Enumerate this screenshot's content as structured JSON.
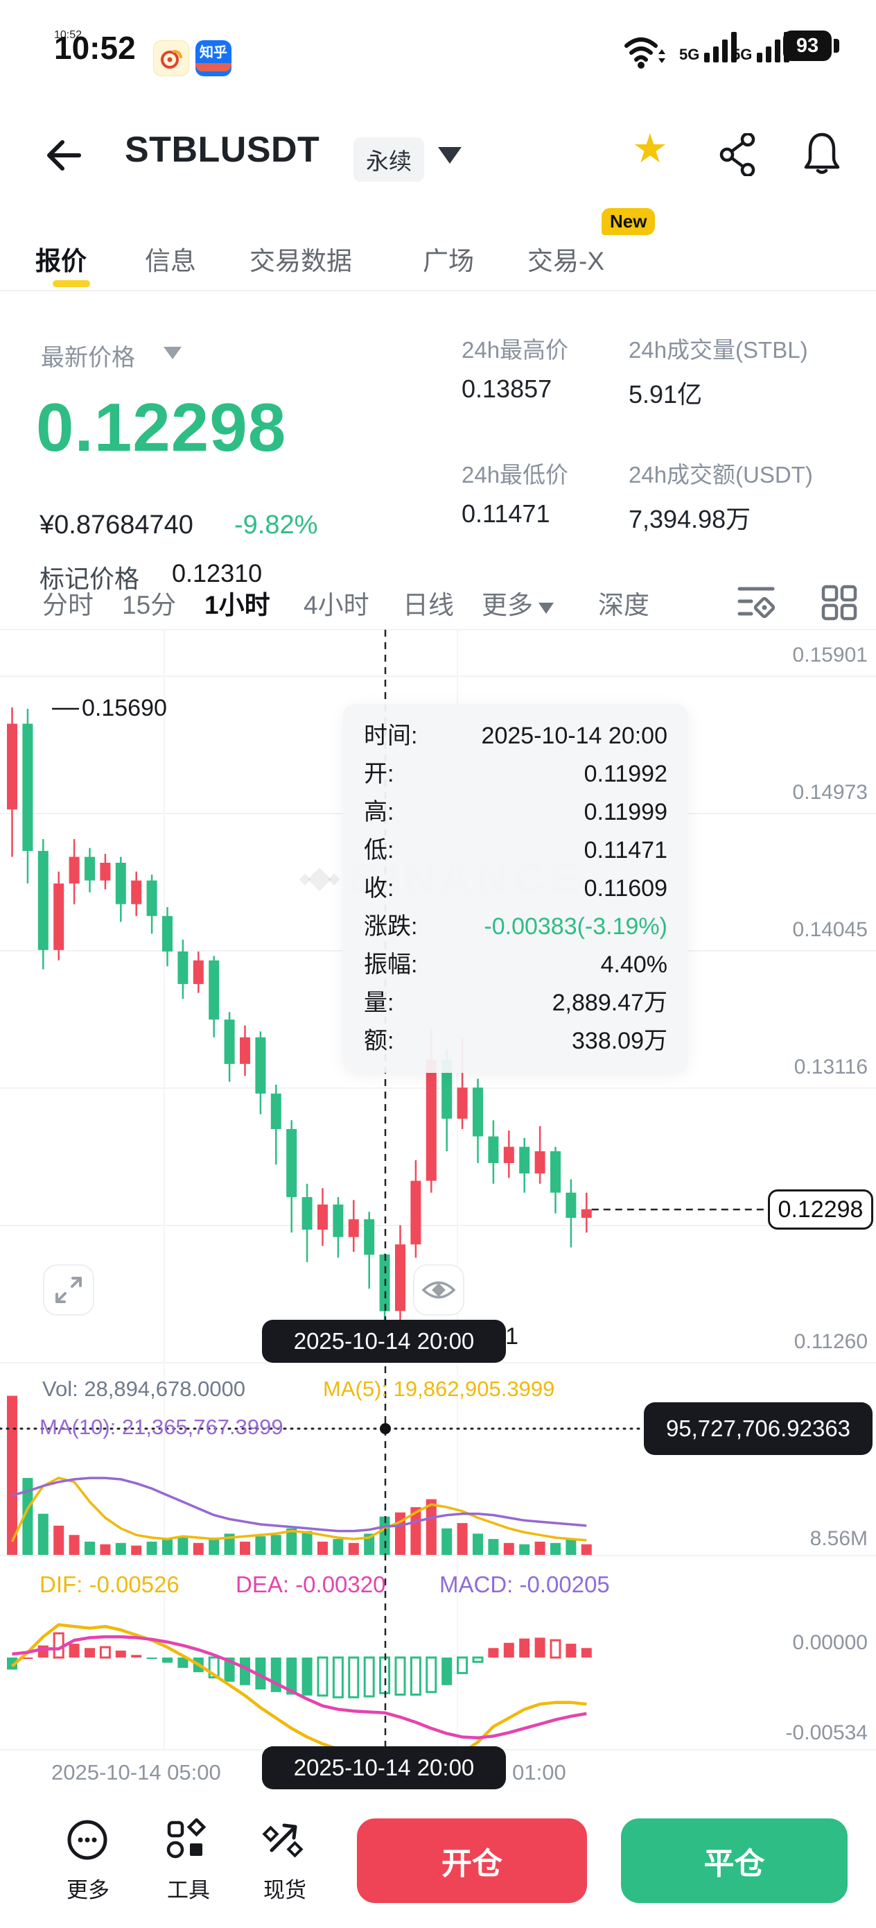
{
  "status_bar": {
    "time": "10:52",
    "battery": "93",
    "network_left": "5G",
    "network_right": "5G"
  },
  "header": {
    "symbol": "STBLUSDT",
    "contract_type": "永续"
  },
  "tabs": {
    "items": [
      "报价",
      "信息",
      "交易数据",
      "广场",
      "交易-X"
    ],
    "active": "报价",
    "new_badge": "New"
  },
  "ticker": {
    "last_price_label": "最新价格",
    "last_price": "0.12298",
    "cny_price": "¥0.87684740",
    "change_pct": "-9.82%",
    "mark_price_label": "标记价格",
    "mark_price": "0.12310",
    "high_label": "24h最高价",
    "high": "0.13857",
    "low_label": "24h最低价",
    "low": "0.11471",
    "volume_label": "24h成交量(STBL)",
    "volume": "5.91亿",
    "turnover_label": "24h成交额(USDT)",
    "turnover": "7,394.98万"
  },
  "timeframes": {
    "items": [
      "分时",
      "15分",
      "1小时",
      "4小时",
      "日线",
      "更多",
      "深度"
    ],
    "active": "1小时"
  },
  "tooltip": {
    "rows": [
      {
        "label": "时间:",
        "value": "2025-10-14 20:00"
      },
      {
        "label": "开:",
        "value": "0.11992"
      },
      {
        "label": "高:",
        "value": "0.11999"
      },
      {
        "label": "低:",
        "value": "0.11471"
      },
      {
        "label": "收:",
        "value": "0.11609"
      },
      {
        "label": "涨跌:",
        "value": "-0.00383(-3.19%)"
      },
      {
        "label": "振幅:",
        "value": "4.40%"
      },
      {
        "label": "量:",
        "value": "2,889.47万"
      },
      {
        "label": "额:",
        "value": "338.09万"
      }
    ]
  },
  "vol_header": {
    "vol": "Vol: 28,894,678.0000",
    "ma5": "MA(5): 19,862,905.3999",
    "ma10": "MA(10): 21,365,767.3999"
  },
  "macd_header": {
    "dif": "DIF: -0.00526",
    "dea": "DEA: -0.00320",
    "macd": "MACD: -0.00205"
  },
  "crosshair": {
    "volume_tag": "95,727,706.92363",
    "date_tag": "2025-10-14 20:00"
  },
  "axis": {
    "price_labels": [
      "0.15901",
      "0.14973",
      "0.14045",
      "0.13116",
      "0.11260"
    ],
    "vol_label": "8.56M",
    "macd_zero": "0.00000",
    "macd_min": "-0.00534",
    "x_left": "2025-10-14 05:00",
    "x_right": "2025-10-15 01:00",
    "price_tag": "0.12298",
    "high_annotation": "0.15690",
    "low_annotation": "0.11471"
  },
  "watermark": "BINANCE",
  "footer": {
    "more": "更多",
    "tools": "工具",
    "spot": "现货",
    "open_btn": "开仓",
    "close_btn": "平仓"
  },
  "chart_data": {
    "type": "candlestick",
    "symbol": "STBLUSDT",
    "interval": "1小时",
    "up_color": "#f04a5a",
    "down_color": "#2ebd85",
    "ma5_color": "#f0b90b",
    "ma10_color": "#9668d2",
    "dif_color": "#f0b90b",
    "dea_color": "#e444ae",
    "price_gridlines": [
      0.15901,
      0.14973,
      0.14045,
      0.13116,
      0.12188,
      0.1126
    ],
    "vol_axis_label_millions": 8.56,
    "macd_gridlines": [
      0.0,
      -0.00534
    ],
    "x_axis_labels": [
      "2025-10-14 05:00",
      "2025-10-14 20:00",
      "2025-10-15 01:00"
    ],
    "annotations": {
      "chart_high": 0.1569,
      "chart_low": 0.11471,
      "last_price": 0.12298,
      "crosshair_volume": "95,727,706.92363",
      "crosshair_time": "2025-10-14 20:00"
    },
    "selected_candle": {
      "time": "2025-10-14 20:00",
      "open": 0.11992,
      "high": 0.11999,
      "low": 0.11471,
      "close": 0.11609,
      "change": "-0.00383",
      "change_pct": "-3.19%",
      "amplitude": "4.40%",
      "volume": "2,889.47万",
      "turnover": "338.09万"
    },
    "columns": [
      "open",
      "high",
      "low",
      "close",
      "volume_millions",
      "vol_ma5_millions",
      "vol_ma10_millions",
      "dif",
      "dea",
      "macd_bar_hollow"
    ],
    "start_time": "2025-10-13 20:00",
    "candles": [
      [
        0.15,
        0.1569,
        0.1468,
        0.1558,
        120,
        10,
        45,
        -0.0005,
        0.0002,
        0
      ],
      [
        0.1558,
        0.1568,
        0.145,
        0.1472,
        58,
        35,
        48,
        0.0003,
        0.0003,
        0
      ],
      [
        0.1472,
        0.148,
        0.1392,
        0.1405,
        31,
        52,
        52,
        0.0012,
        0.0005,
        0
      ],
      [
        0.1405,
        0.1458,
        0.1398,
        0.145,
        22,
        58,
        55,
        0.0019,
        0.0005,
        1
      ],
      [
        0.145,
        0.148,
        0.1436,
        0.1468,
        15,
        55,
        57,
        0.0018,
        0.001,
        0
      ],
      [
        0.1468,
        0.1474,
        0.1444,
        0.1452,
        10,
        40,
        58,
        0.0017,
        0.00115,
        0
      ],
      [
        0.1452,
        0.147,
        0.1446,
        0.1464,
        8,
        28,
        58,
        0.0018,
        0.0012,
        1
      ],
      [
        0.1464,
        0.1468,
        0.1424,
        0.1436,
        9,
        20,
        57,
        0.0016,
        0.0012,
        0
      ],
      [
        0.1436,
        0.1458,
        0.1428,
        0.1452,
        7,
        15,
        54,
        0.0013,
        0.00115,
        0
      ],
      [
        0.1452,
        0.1456,
        0.1416,
        0.1428,
        10,
        13,
        50,
        0.001,
        0.00105,
        0
      ],
      [
        0.1428,
        0.1434,
        0.1394,
        0.1404,
        12,
        12,
        45,
        0.0006,
        0.0009,
        0
      ],
      [
        0.1404,
        0.1412,
        0.1372,
        0.1382,
        14,
        14,
        40,
        0.0001,
        0.0007,
        0
      ],
      [
        0.1382,
        0.1404,
        0.1376,
        0.1398,
        9,
        13,
        35,
        -0.0004,
        0.00045,
        0
      ],
      [
        0.1398,
        0.1401,
        0.1346,
        0.1358,
        13,
        12,
        30,
        -0.001,
        0.00015,
        1
      ],
      [
        0.1358,
        0.1363,
        0.1316,
        0.1328,
        16,
        13,
        27,
        -0.0016,
        -0.0002,
        0
      ],
      [
        0.1328,
        0.1354,
        0.132,
        0.1346,
        10,
        14,
        25,
        -0.0022,
        -0.0006,
        0
      ],
      [
        0.1346,
        0.135,
        0.1294,
        0.1308,
        14,
        15,
        23,
        -0.0029,
        -0.00105,
        0
      ],
      [
        0.1308,
        0.1314,
        0.126,
        0.1284,
        15,
        16,
        22,
        -0.0035,
        -0.0015,
        0
      ],
      [
        0.1284,
        0.129,
        0.1214,
        0.1238,
        20,
        18,
        21,
        -0.0041,
        -0.00195,
        0
      ],
      [
        0.1238,
        0.1247,
        0.1194,
        0.1216,
        18,
        17,
        20,
        -0.0046,
        -0.0024,
        0
      ],
      [
        0.1216,
        0.1244,
        0.1205,
        0.1233,
        10,
        15,
        19,
        -0.005,
        -0.0028,
        1
      ],
      [
        0.1233,
        0.1238,
        0.1197,
        0.1211,
        12,
        13,
        18,
        -0.0053,
        -0.003,
        1
      ],
      [
        0.1211,
        0.1236,
        0.1201,
        0.1223,
        9,
        12,
        18,
        -0.0054,
        -0.0031,
        1
      ],
      [
        0.1223,
        0.1228,
        0.1176,
        0.1199,
        16,
        13,
        19,
        -0.0054,
        -0.00315,
        1
      ],
      [
        0.11992,
        0.11999,
        0.11471,
        0.11609,
        28.89,
        19.86,
        21.37,
        -0.00526,
        -0.0032,
        1
      ],
      [
        0.1161,
        0.1219,
        0.1151,
        0.1206,
        32,
        25,
        22,
        -0.0056,
        -0.00345,
        1
      ],
      [
        0.1206,
        0.1263,
        0.1197,
        0.1249,
        36,
        32,
        25,
        -0.0059,
        -0.00375,
        1
      ],
      [
        0.1249,
        0.1352,
        0.1241,
        0.1331,
        42,
        38,
        28,
        -0.0061,
        -0.0041,
        1
      ],
      [
        0.1331,
        0.1338,
        0.1269,
        0.1291,
        20,
        36,
        30,
        -0.006,
        -0.0044,
        0
      ],
      [
        0.1291,
        0.1346,
        0.1284,
        0.1312,
        24,
        33,
        31,
        -0.0055,
        -0.0046,
        1
      ],
      [
        0.1312,
        0.1318,
        0.1261,
        0.1279,
        16,
        28,
        31,
        -0.0049,
        -0.00465,
        1
      ],
      [
        0.1279,
        0.129,
        0.1247,
        0.1261,
        12,
        24,
        30,
        -0.004,
        -0.00455,
        0
      ],
      [
        0.1261,
        0.1283,
        0.1251,
        0.1272,
        9,
        20,
        28,
        -0.0035,
        -0.00435,
        0
      ],
      [
        0.1272,
        0.1278,
        0.1241,
        0.1254,
        8,
        17,
        26,
        -0.003,
        -0.0041,
        0
      ],
      [
        0.1254,
        0.1286,
        0.1247,
        0.1269,
        10,
        15,
        25,
        -0.0027,
        -0.00385,
        0
      ],
      [
        0.1269,
        0.1272,
        0.1227,
        0.1241,
        9,
        13,
        24,
        -0.0026,
        -0.0036,
        1
      ],
      [
        0.1241,
        0.125,
        0.1204,
        0.1224,
        12,
        12,
        23,
        -0.0026,
        -0.0034,
        0
      ],
      [
        0.1224,
        0.1241,
        0.1214,
        0.12298,
        8,
        11,
        22,
        -0.0027,
        -0.00325,
        0
      ]
    ]
  }
}
